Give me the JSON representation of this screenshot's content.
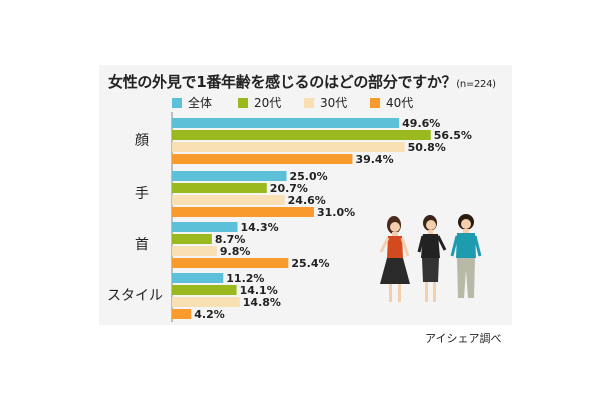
{
  "title": "女性の外見で1番年齢を感じるのはどの部分ですか？",
  "note": "(n=224)",
  "credit": "アイシェア調べ",
  "colors": {
    "all": "#5bc0d8",
    "20s": "#9ab91e",
    "30s": "#f9dfb4",
    "40s": "#f89a2c"
  },
  "chart_data": {
    "type": "bar",
    "orientation": "horizontal",
    "title": "女性の外見で1番年齢を感じるのはどの部分ですか？",
    "categories": [
      "顔",
      "手",
      "首",
      "スタイル"
    ],
    "series": [
      {
        "name": "全体",
        "values": [
          49.6,
          25.0,
          14.3,
          11.2
        ],
        "labels": [
          "49.6%",
          "25.0%",
          "14.3%",
          "11.2%"
        ],
        "color": "#5bc0d8"
      },
      {
        "name": "20代",
        "values": [
          56.5,
          20.7,
          8.7,
          14.1
        ],
        "labels": [
          "56.5%",
          "20.7%",
          "8.7%",
          "14.1%"
        ],
        "color": "#9ab91e"
      },
      {
        "name": "30代",
        "values": [
          50.8,
          24.6,
          9.8,
          14.8
        ],
        "labels": [
          "50.8%",
          "24.6%",
          "9.8%",
          "14.8%"
        ],
        "color": "#f9dfb4"
      },
      {
        "name": "40代",
        "values": [
          39.4,
          31.0,
          25.4,
          4.2
        ],
        "labels": [
          "39.4%",
          "31.0%",
          "25.4%",
          "4.2%"
        ],
        "color": "#f89a2c"
      }
    ],
    "legend_position": "top",
    "grid": false
  }
}
